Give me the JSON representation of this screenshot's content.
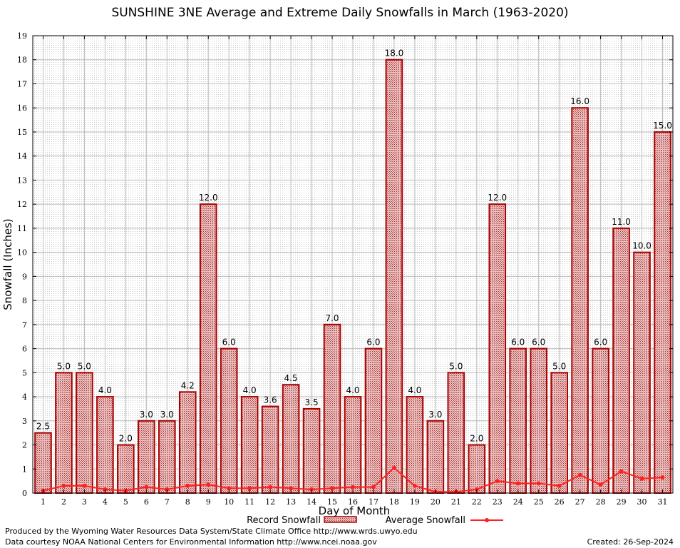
{
  "colors": {
    "bar_fill": "#e8b4b4",
    "bar_edge": "#aa0000",
    "line": "#ff2020",
    "grid": "#bbbbbb"
  },
  "footer": {
    "left_line1": "Produced by the Wyoming Water Resources Data System/State Climate Office http://www.wrds.uwyo.edu",
    "left_line2": "Data courtesy NOAA National Centers for Environmental Information http://www.ncei.noaa.gov",
    "created": "Created:  26-Sep-2024"
  },
  "chart_data": {
    "type": "bar",
    "title": "SUNSHINE 3NE Average and Extreme Daily Snowfalls in March (1963-2020)",
    "xlabel": "Day of Month",
    "ylabel": "Snowfall (Inches)",
    "ylim": [
      0,
      19
    ],
    "yticks": [
      0,
      1,
      2,
      3,
      4,
      5,
      6,
      7,
      8,
      9,
      10,
      11,
      12,
      13,
      14,
      15,
      16,
      17,
      18,
      19
    ],
    "grid": true,
    "legend_position": "bottom",
    "categories": [
      "1",
      "2",
      "3",
      "4",
      "5",
      "6",
      "7",
      "8",
      "9",
      "10",
      "11",
      "12",
      "13",
      "14",
      "15",
      "16",
      "17",
      "18",
      "19",
      "20",
      "21",
      "22",
      "23",
      "24",
      "25",
      "26",
      "27",
      "28",
      "29",
      "30",
      "31"
    ],
    "series": [
      {
        "name": "Record Snowfall",
        "type": "bar",
        "values": [
          2.5,
          5.0,
          5.0,
          4.0,
          2.0,
          3.0,
          3.0,
          4.2,
          12.0,
          6.0,
          4.0,
          3.6,
          4.5,
          3.5,
          7.0,
          4.0,
          6.0,
          18.0,
          4.0,
          3.0,
          5.0,
          2.0,
          12.0,
          6.0,
          6.0,
          5.0,
          16.0,
          6.0,
          11.0,
          10.0,
          15.0
        ],
        "labels": [
          "2.5",
          "5.0",
          "5.0",
          "4.0",
          "2.0",
          "3.0",
          "3.0",
          "4.2",
          "12.0",
          "6.0",
          "4.0",
          "3.6",
          "4.5",
          "3.5",
          "7.0",
          "4.0",
          "6.0",
          "18.0",
          "4.0",
          "3.0",
          "5.0",
          "2.0",
          "12.0",
          "6.0",
          "6.0",
          "5.0",
          "16.0",
          "6.0",
          "11.0",
          "10.0",
          "15.0"
        ]
      },
      {
        "name": "Average Snowfall",
        "type": "line",
        "values": [
          0.1,
          0.3,
          0.3,
          0.15,
          0.1,
          0.25,
          0.15,
          0.3,
          0.35,
          0.2,
          0.2,
          0.25,
          0.2,
          0.15,
          0.2,
          0.25,
          0.25,
          1.05,
          0.3,
          0.05,
          0.05,
          0.15,
          0.5,
          0.4,
          0.4,
          0.3,
          0.75,
          0.35,
          0.9,
          0.6,
          0.65
        ]
      }
    ]
  }
}
